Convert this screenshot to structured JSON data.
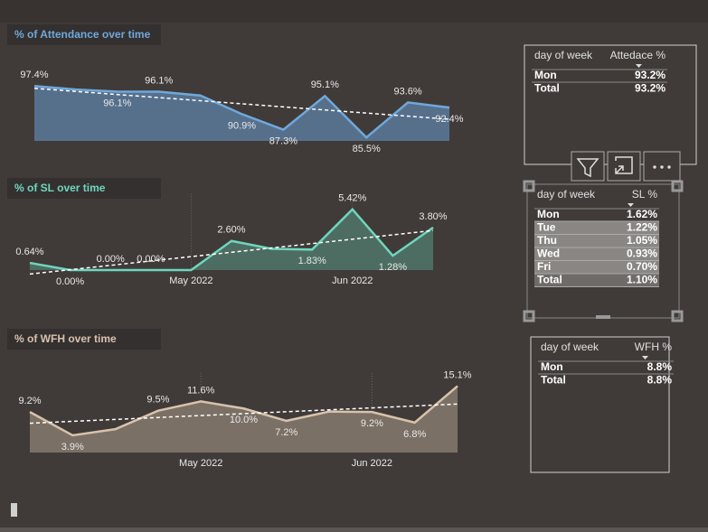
{
  "chart_data": [
    {
      "type": "area",
      "title": "% of Attendance over time",
      "color": "#6fa8dc",
      "fill": "#56708c",
      "categories": [
        null,
        null,
        null,
        null,
        null,
        null,
        null,
        null,
        null,
        null,
        null
      ],
      "values": [
        97.4,
        96.6,
        96.1,
        96.1,
        95.2,
        90.9,
        87.3,
        95.1,
        85.5,
        93.6,
        92.4
      ],
      "value_labels": [
        "97.4%",
        null,
        "96.1%",
        "96.1%",
        null,
        "90.9%",
        "87.3%",
        "95.1%",
        "85.5%",
        "93.6%",
        "92.4%"
      ],
      "ylim": [
        84.7,
        98.5
      ],
      "trendline": true
    },
    {
      "type": "area",
      "title": "% of SL over time",
      "color": "#6fd6be",
      "fill": "#4d6d62",
      "categories": [
        null,
        null,
        null,
        null,
        "May 2022",
        null,
        null,
        null,
        "Jun 2022",
        null,
        null
      ],
      "values": [
        0.64,
        0.0,
        0.0,
        0.0,
        0.0,
        2.6,
        1.9,
        1.83,
        5.42,
        1.28,
        3.8
      ],
      "value_labels": [
        "0.64%",
        "0.00%",
        "0.00%",
        "0.00%",
        null,
        "2.60%",
        null,
        "1.83%",
        "5.42%",
        "1.28%",
        "3.80%"
      ],
      "ylim": [
        0,
        6
      ],
      "trendline": true,
      "grid": true
    },
    {
      "type": "area",
      "title": "% of WFH over time",
      "color": "#d8c2ac",
      "fill": "#7b7065",
      "categories": [
        null,
        null,
        null,
        null,
        "May 2022",
        null,
        null,
        null,
        "Jun 2022",
        null,
        null
      ],
      "values": [
        9.2,
        3.9,
        5.3,
        9.5,
        11.6,
        10.0,
        7.2,
        9.3,
        9.2,
        6.8,
        15.1
      ],
      "value_labels": [
        "9.2%",
        "3.9%",
        null,
        "9.5%",
        "11.6%",
        "10.0%",
        "7.2%",
        null,
        "9.2%",
        "6.8%",
        "15.1%"
      ],
      "ylim": [
        0,
        16
      ],
      "trendline": true,
      "grid": true
    }
  ],
  "tables": [
    {
      "headers": [
        "day of week",
        "Attedace %"
      ],
      "rows": [
        [
          "Mon",
          "93.2%"
        ],
        [
          "Total",
          "93.2%"
        ]
      ]
    },
    {
      "headers": [
        "day of week",
        "SL %"
      ],
      "rows": [
        [
          "Mon",
          "1.62%"
        ],
        [
          "Tue",
          "1.22%"
        ],
        [
          "Thu",
          "1.05%"
        ],
        [
          "Wed",
          "0.93%"
        ],
        [
          "Fri",
          "0.70%"
        ],
        [
          "Total",
          "1.10%"
        ]
      ]
    },
    {
      "headers": [
        "day of week",
        "WFH %"
      ],
      "rows": [
        [
          "Mon",
          "8.8%"
        ],
        [
          "Total",
          "8.8%"
        ]
      ]
    }
  ]
}
